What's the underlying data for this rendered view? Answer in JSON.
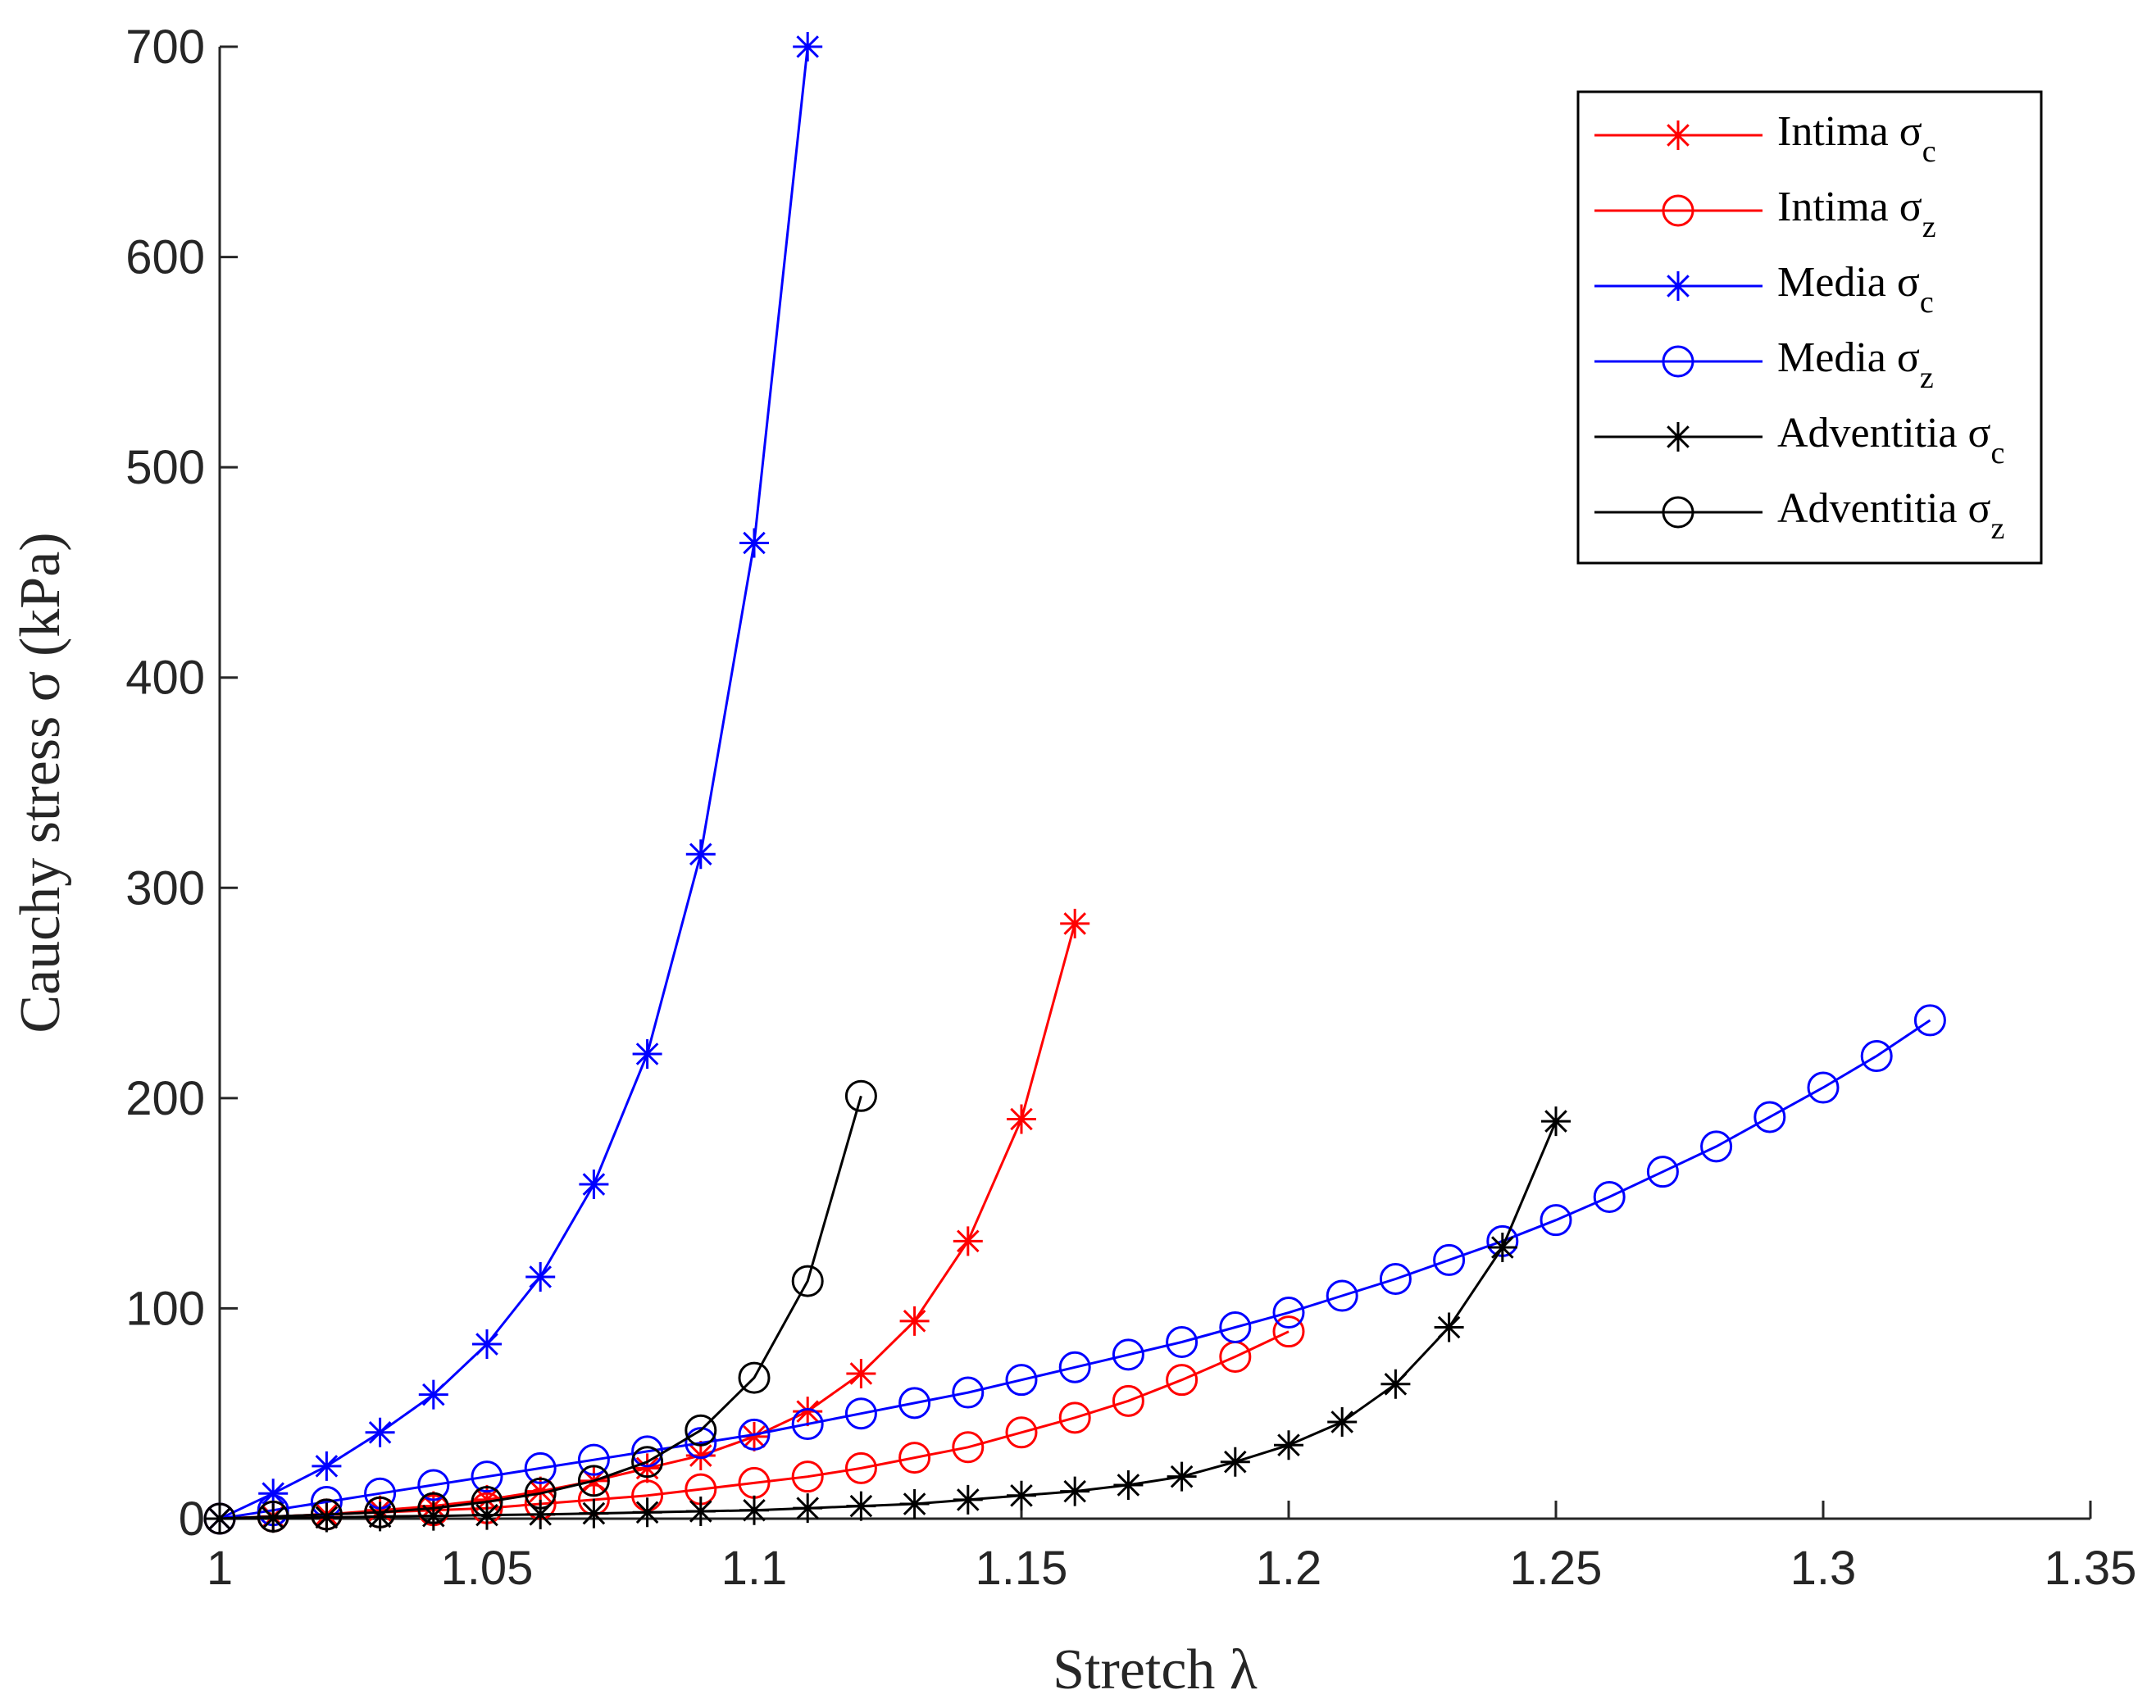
{
  "chart_data": {
    "type": "line",
    "title": "",
    "xlabel": "Stretch λ",
    "ylabel": "Cauchy stress σ (kPa)",
    "xlim": [
      1,
      1.35
    ],
    "ylim": [
      0,
      700
    ],
    "xticks": [
      1,
      1.05,
      1.1,
      1.15,
      1.2,
      1.25,
      1.3,
      1.35
    ],
    "xtick_labels": [
      "1",
      "1.05",
      "1.1",
      "1.15",
      "1.2",
      "1.25",
      "1.3",
      "1.35"
    ],
    "yticks": [
      0,
      100,
      200,
      300,
      400,
      500,
      600,
      700
    ],
    "ytick_labels": [
      "0",
      "100",
      "200",
      "300",
      "400",
      "500",
      "600",
      "700"
    ],
    "grid": false,
    "legend_position": "top-right",
    "series": [
      {
        "name": "Intima σc",
        "label": "Intima σ",
        "subscript": "c",
        "color": "#ff0000",
        "marker": "asterisk",
        "x": [
          1,
          1.01,
          1.02,
          1.03,
          1.04,
          1.05,
          1.06,
          1.07,
          1.08,
          1.09,
          1.1,
          1.11,
          1.12,
          1.13,
          1.14,
          1.15,
          1.16
        ],
        "y": [
          0,
          1,
          2,
          4,
          6,
          9,
          13,
          18,
          24,
          30,
          39,
          51,
          69,
          94,
          132,
          190,
          283
        ]
      },
      {
        "name": "Intima σz",
        "label": "Intima σ",
        "subscript": "z",
        "color": "#ff0000",
        "marker": "circle",
        "x": [
          1,
          1.01,
          1.02,
          1.03,
          1.04,
          1.05,
          1.06,
          1.07,
          1.08,
          1.09,
          1.1,
          1.11,
          1.12,
          1.13,
          1.14,
          1.15,
          1.16,
          1.17,
          1.18,
          1.19,
          1.2
        ],
        "y": [
          0,
          1,
          2,
          3,
          4,
          5,
          7,
          9,
          11,
          14,
          17,
          20,
          24,
          29,
          34,
          41,
          48,
          56,
          66,
          77,
          89
        ]
      },
      {
        "name": "Media σc",
        "label": "Media σ",
        "subscript": "c",
        "color": "#0000ff",
        "marker": "asterisk",
        "x": [
          1,
          1.01,
          1.02,
          1.03,
          1.04,
          1.05,
          1.06,
          1.07,
          1.08,
          1.09,
          1.1,
          1.11
        ],
        "y": [
          0,
          12,
          25,
          41,
          59,
          83,
          115,
          159,
          221,
          316,
          464,
          700
        ]
      },
      {
        "name": "Media σz",
        "label": "Media σ",
        "subscript": "z",
        "color": "#0000ff",
        "marker": "circle",
        "x": [
          1,
          1.01,
          1.02,
          1.03,
          1.04,
          1.05,
          1.06,
          1.07,
          1.08,
          1.09,
          1.1,
          1.11,
          1.12,
          1.13,
          1.14,
          1.15,
          1.16,
          1.17,
          1.18,
          1.19,
          1.2,
          1.21,
          1.22,
          1.23,
          1.24,
          1.25,
          1.26,
          1.27,
          1.28,
          1.29,
          1.3,
          1.31,
          1.32
        ],
        "y": [
          0,
          4,
          8,
          12,
          16,
          20,
          24,
          28,
          32,
          36,
          40,
          45,
          50,
          55,
          60,
          66,
          72,
          78,
          84,
          91,
          98,
          106,
          114,
          123,
          132,
          142,
          153,
          165,
          177,
          191,
          205,
          220,
          237
        ]
      },
      {
        "name": "Adventitia σc",
        "label": "Adventitia σ",
        "subscript": "c",
        "color": "#000000",
        "marker": "asterisk",
        "x": [
          1,
          1.01,
          1.02,
          1.03,
          1.04,
          1.05,
          1.06,
          1.07,
          1.08,
          1.09,
          1.1,
          1.11,
          1.12,
          1.13,
          1.14,
          1.15,
          1.16,
          1.17,
          1.18,
          1.19,
          1.2,
          1.21,
          1.22,
          1.23,
          1.24,
          1.25
        ],
        "y": [
          0,
          0.3,
          0.6,
          1,
          1.3,
          1.7,
          2,
          2.5,
          3,
          3.5,
          4,
          5,
          6,
          7,
          9,
          11,
          13,
          16,
          20,
          27,
          35,
          46,
          64,
          91,
          129,
          189
        ]
      },
      {
        "name": "Adventitia σz",
        "label": "Adventitia σ",
        "subscript": "z",
        "color": "#000000",
        "marker": "circle",
        "x": [
          1,
          1.01,
          1.02,
          1.03,
          1.04,
          1.05,
          1.06,
          1.07,
          1.08,
          1.09,
          1.1,
          1.11,
          1.12
        ],
        "y": [
          0,
          1,
          2,
          3,
          5,
          8,
          12,
          18,
          27,
          42,
          67,
          113,
          201
        ]
      }
    ]
  }
}
